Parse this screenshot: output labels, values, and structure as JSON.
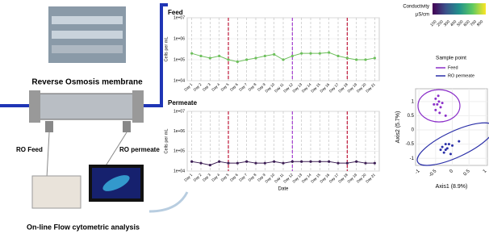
{
  "labels": {
    "membrane": "Reverse Osmosis membrane",
    "ro_feed": "RO Feed",
    "ro_permeate": "RO permeate",
    "analysis": "On-line Flow cytometric analysis"
  },
  "colorbar": {
    "title": "Conductivity",
    "unit": "µS/cm",
    "ticks": [
      100,
      200,
      300,
      400,
      500,
      600,
      700,
      800
    ]
  },
  "chart_data": [
    {
      "type": "line",
      "title": "Feed",
      "y_label": "Cells per mL",
      "log": true,
      "color": "#6cbf5a",
      "categories": [
        "Day 1",
        "Day 2",
        "Day 3",
        "Day 4",
        "Day 5",
        "Day 6",
        "Day 7",
        "Day 8",
        "Day 9",
        "Day 10",
        "Day 11",
        "Day 12",
        "Day 13",
        "Day 14",
        "Day 15",
        "Day 16",
        "Day 17",
        "Day 18",
        "Day 19",
        "Day 20",
        "Day 21"
      ],
      "values": [
        200000,
        150000,
        120000,
        150000,
        100000,
        80000,
        100000,
        120000,
        150000,
        180000,
        100000,
        150000,
        200000,
        200000,
        200000,
        220000,
        150000,
        120000,
        100000,
        100000,
        120000
      ],
      "ylim": [
        10000,
        10000000
      ],
      "yticks": [
        {
          "value": 10000,
          "label": "1e+04"
        },
        {
          "value": 100000,
          "label": "1e+05"
        },
        {
          "value": 1000000,
          "label": "1e+06"
        },
        {
          "value": 10000000,
          "label": "1e+07"
        }
      ]
    },
    {
      "type": "line",
      "title": "Permeate",
      "y_label": "Cells per mL",
      "x_label": "Date",
      "log": true,
      "color": "#3d1f55",
      "categories": [
        "Day 1",
        "Day 2",
        "Day 3",
        "Day 4",
        "Day 5",
        "Day 6",
        "Day 7",
        "Day 8",
        "Day 9",
        "Day 10",
        "Day 11",
        "Day 12",
        "Day 13",
        "Day 14",
        "Day 15",
        "Day 16",
        "Day 17",
        "Day 18",
        "Day 19",
        "Day 20",
        "Day 21"
      ],
      "values": [
        30000,
        25000,
        20000,
        30000,
        25000,
        25000,
        30000,
        25000,
        25000,
        30000,
        25000,
        30000,
        30000,
        30000,
        30000,
        30000,
        25000,
        25000,
        30000,
        25000,
        25000
      ],
      "ylim": [
        10000,
        10000000
      ],
      "yticks": [
        {
          "value": 10000,
          "label": "1e+04"
        },
        {
          "value": 100000,
          "label": "1e+05"
        },
        {
          "value": 1000000,
          "label": "1e+06"
        },
        {
          "value": 10000000,
          "label": "1e+07"
        }
      ]
    },
    {
      "type": "scatter",
      "x_label": "Axis1 (8.9%)",
      "y_label": "Axis2 (5.7%)",
      "legend_title": "Sample point",
      "xlim": [
        -1.1,
        1.05
      ],
      "ylim": [
        -1.25,
        1.45
      ],
      "xticks": [
        -1.0,
        -0.5,
        0.0,
        0.5,
        1.0
      ],
      "yticks": [
        -1.0,
        -0.5,
        0.0,
        0.5,
        1.0
      ],
      "series": [
        {
          "name": "Feed",
          "color": "#8b2fc9",
          "x": [
            -0.5,
            -0.45,
            -0.4,
            -0.35,
            -0.5,
            -0.3,
            -0.42,
            -0.38,
            -0.2,
            -0.55
          ],
          "values": [
            1.1,
            0.9,
            1.0,
            0.8,
            0.7,
            0.95,
            1.2,
            0.6,
            0.5,
            0.9
          ]
        },
        {
          "name": "RO permeate",
          "color": "#2a2fa8",
          "x": [
            -0.3,
            -0.2,
            -0.1,
            -0.25,
            -0.15,
            0.0,
            -0.35,
            -0.05,
            0.2,
            -0.2
          ],
          "values": [
            -0.6,
            -0.7,
            -0.5,
            -0.8,
            -0.65,
            -0.55,
            -0.7,
            -0.85,
            -0.4,
            -0.5
          ]
        }
      ]
    }
  ]
}
